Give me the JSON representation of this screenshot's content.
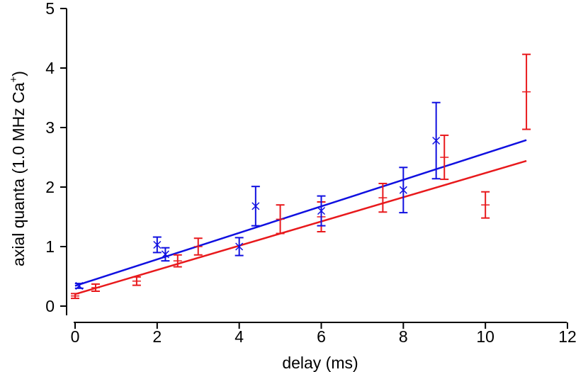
{
  "chart_data": {
    "type": "scatter",
    "xlabel": "delay (ms)",
    "ylabel_main": "axial quanta (1.0 MHz Ca",
    "ylabel_sup": "+",
    "ylabel_close": ")",
    "xlim": [
      0,
      12
    ],
    "ylim": [
      0,
      5
    ],
    "x_ticks": [
      0,
      2,
      4,
      6,
      8,
      10,
      12
    ],
    "y_ticks": [
      0,
      1,
      2,
      3,
      4,
      5
    ],
    "grid": false,
    "series": [
      {
        "color": "#e8191c",
        "marker": "plus",
        "points": [
          {
            "x": 0.0,
            "y": 0.17,
            "err": 0.04
          },
          {
            "x": 0.5,
            "y": 0.31,
            "err": 0.06
          },
          {
            "x": 1.5,
            "y": 0.42,
            "err": 0.07
          },
          {
            "x": 2.5,
            "y": 0.76,
            "err": 0.1
          },
          {
            "x": 3.0,
            "y": 1.0,
            "err": 0.14
          },
          {
            "x": 5.0,
            "y": 1.46,
            "err": 0.24
          },
          {
            "x": 6.0,
            "y": 1.5,
            "err": 0.25
          },
          {
            "x": 7.5,
            "y": 1.82,
            "err": 0.24
          },
          {
            "x": 9.0,
            "y": 2.5,
            "err": 0.37
          },
          {
            "x": 10.0,
            "y": 1.7,
            "err": 0.22
          },
          {
            "x": 11.0,
            "y": 3.6,
            "err": 0.63
          }
        ],
        "fit": {
          "x": [
            0.0,
            11.0
          ],
          "y": [
            0.2,
            2.44
          ]
        }
      },
      {
        "color": "#1010e0",
        "marker": "cross",
        "points": [
          {
            "x": 0.1,
            "y": 0.34,
            "err": 0.04
          },
          {
            "x": 2.0,
            "y": 1.03,
            "err": 0.13
          },
          {
            "x": 2.2,
            "y": 0.87,
            "err": 0.11
          },
          {
            "x": 4.0,
            "y": 1.0,
            "err": 0.15
          },
          {
            "x": 4.4,
            "y": 1.68,
            "err": 0.33
          },
          {
            "x": 6.0,
            "y": 1.6,
            "err": 0.25
          },
          {
            "x": 8.0,
            "y": 1.95,
            "err": 0.38
          },
          {
            "x": 8.8,
            "y": 2.78,
            "err": 0.64
          }
        ],
        "fit": {
          "x": [
            0.0,
            11.0
          ],
          "y": [
            0.34,
            2.79
          ]
        }
      }
    ]
  }
}
